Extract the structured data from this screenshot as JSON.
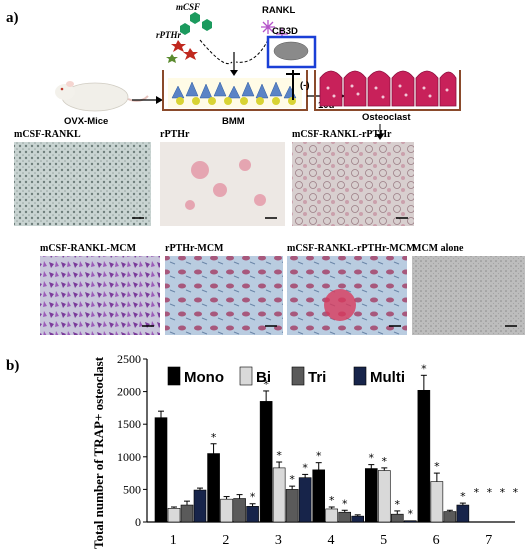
{
  "panel_a": {
    "label": "a)",
    "schematic": {
      "mcsf": "mCSF",
      "rpthr": "rPTHr",
      "rankl": "RANKL",
      "cb3d": "CB3D",
      "inhibit": "(-)",
      "duration": "10d",
      "mice": "OVX-Mice",
      "bmm": "BMM",
      "osteoclast": "Osteoclast"
    },
    "micrographs_row1": [
      "mCSF-RANKL",
      "rPTHr",
      "mCSF-RANKL-rPTHr"
    ],
    "micrographs_row2": [
      "mCSF-RANKL-MCM",
      "rPTHr-MCM",
      "mCSF-RANKL-rPTHr-MCM",
      "MCM alone"
    ]
  },
  "panel_b": {
    "label": "b)"
  },
  "colors": {
    "mono": "#000000",
    "bi": "#d9d9d9",
    "tri": "#5a5a5a",
    "multi": "#17244a",
    "trap_pink": "#d9507a",
    "purple": "#7a3b9a"
  },
  "chart_data": {
    "type": "bar",
    "ylabel": "Total number of TRAP+ osteoclast",
    "xlabel": "",
    "categories": [
      "1",
      "2",
      "3",
      "4",
      "5",
      "6",
      "7"
    ],
    "ylim": [
      0,
      2500
    ],
    "yticks": [
      0,
      500,
      1000,
      1500,
      2000,
      2500
    ],
    "legend_position": "top",
    "series": [
      {
        "name": "Mono",
        "values": [
          1600,
          1050,
          1850,
          800,
          820,
          2020,
          0
        ],
        "errors": [
          100,
          150,
          160,
          110,
          60,
          230,
          0
        ],
        "stars": [
          false,
          true,
          true,
          true,
          true,
          true,
          true
        ]
      },
      {
        "name": "Bi",
        "values": [
          210,
          350,
          830,
          200,
          790,
          620,
          0
        ],
        "errors": [
          20,
          40,
          90,
          30,
          40,
          130,
          0
        ],
        "stars": [
          false,
          false,
          true,
          true,
          true,
          true,
          true
        ]
      },
      {
        "name": "Tri",
        "values": [
          260,
          360,
          500,
          150,
          120,
          160,
          0
        ],
        "errors": [
          60,
          60,
          50,
          30,
          50,
          20,
          0
        ],
        "stars": [
          false,
          false,
          true,
          true,
          true,
          false,
          true
        ]
      },
      {
        "name": "Multi",
        "values": [
          490,
          240,
          680,
          90,
          20,
          260,
          0
        ],
        "errors": [
          30,
          40,
          50,
          20,
          0,
          30,
          0
        ],
        "stars": [
          false,
          true,
          true,
          false,
          true,
          true,
          true
        ]
      }
    ]
  }
}
